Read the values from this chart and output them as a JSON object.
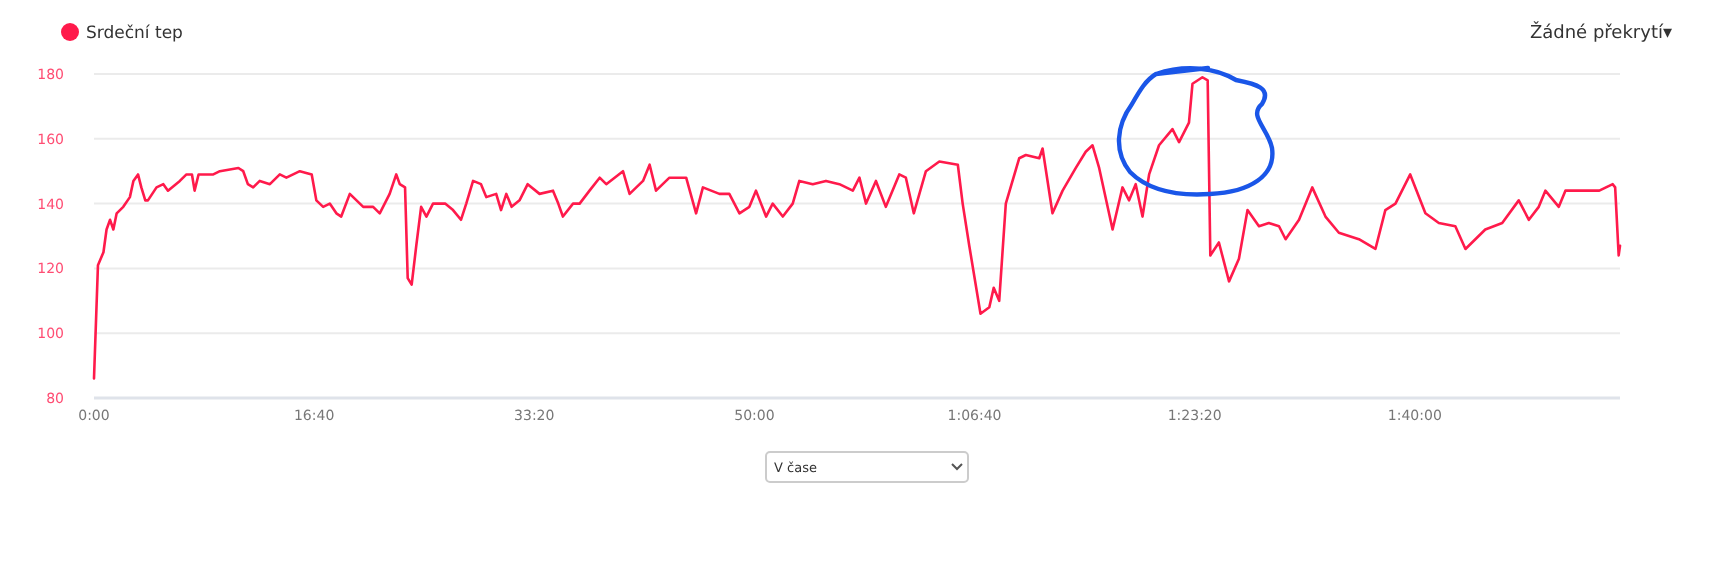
{
  "chart_data": {
    "type": "line",
    "xlim": [
      0,
      6932
    ],
    "ylim": [
      80,
      180
    ],
    "xticks": [
      {
        "value": 0,
        "label": "0:00"
      },
      {
        "value": 1000,
        "label": "16:40"
      },
      {
        "value": 2000,
        "label": "33:20"
      },
      {
        "value": 3000,
        "label": "50:00"
      },
      {
        "value": 4000,
        "label": "1:06:40"
      },
      {
        "value": 5000,
        "label": "1:23:20"
      },
      {
        "value": 6000,
        "label": "1:40:00"
      }
    ],
    "yticks": [
      80,
      100,
      120,
      140,
      160,
      180
    ],
    "grid": "y",
    "legend": "top left",
    "marker": "none",
    "line_style": "solid",
    "annotations": [
      "Žádné překrytí▾",
      "V čase"
    ],
    "series": [
      {
        "name": "Srdeční tep",
        "color": "#ff1a4b",
        "x": [
          0,
          18,
          43,
          57,
          73,
          88,
          103,
          133,
          163,
          179,
          200,
          215,
          233,
          245,
          284,
          315,
          336,
          390,
          420,
          445,
          457,
          475,
          542,
          572,
          656,
          678,
          699,
          723,
          753,
          799,
          844,
          874,
          935,
          989,
          1010,
          1041,
          1071,
          1101,
          1123,
          1162,
          1223,
          1268,
          1298,
          1343,
          1373,
          1389,
          1413,
          1425,
          1443,
          1464,
          1486,
          1510,
          1540,
          1595,
          1631,
          1667,
          1691,
          1722,
          1758,
          1782,
          1827,
          1849,
          1873,
          1897,
          1933,
          1970,
          2024,
          2085,
          2109,
          2130,
          2176,
          2206,
          2251,
          2297,
          2327,
          2403,
          2433,
          2494,
          2524,
          2553,
          2614,
          2690,
          2735,
          2766,
          2841,
          2886,
          2932,
          2977,
          3007,
          3053,
          3083,
          3129,
          3174,
          3204,
          3265,
          3325,
          3386,
          3447,
          3477,
          3507,
          3552,
          3597,
          3658,
          3688,
          3724,
          3779,
          3840,
          3924,
          3946,
          3976,
          4027,
          4067,
          4087,
          4112,
          4142,
          4203,
          4233,
          4294,
          4309,
          4354,
          4400,
          4460,
          4505,
          4536,
          4566,
          4627,
          4672,
          4702,
          4732,
          4763,
          4793,
          4838,
          4899,
          4929,
          4974,
          4990,
          5035,
          5059,
          5071,
          5110,
          5156,
          5201,
          5240,
          5292,
          5337,
          5383,
          5413,
          5474,
          5534,
          5594,
          5655,
          5746,
          5821,
          5866,
          5912,
          5979,
          6048,
          6109,
          6184,
          6230,
          6320,
          6397,
          6472,
          6518,
          6563,
          6593,
          6654,
          6684,
          6838,
          6899,
          6910,
          6926,
          6932
        ],
        "values": [
          86,
          121,
          125,
          132,
          135,
          132,
          137,
          139,
          142,
          147,
          149,
          145,
          141,
          141,
          145,
          146,
          144,
          147,
          149,
          149,
          144,
          149,
          149,
          150,
          151,
          150,
          146,
          145,
          147,
          146,
          149,
          148,
          150,
          149,
          141,
          139,
          140,
          137,
          136,
          143,
          139,
          139,
          137,
          143,
          149,
          146,
          145,
          117,
          115,
          127,
          139,
          136,
          140,
          140,
          138,
          135,
          140,
          147,
          146,
          142,
          143,
          138,
          143,
          139,
          141,
          146,
          143,
          144,
          140,
          136,
          140,
          140,
          144,
          148,
          146,
          150,
          143,
          147,
          152,
          144,
          148,
          148,
          137,
          145,
          143,
          143,
          137,
          139,
          144,
          136,
          140,
          136,
          140,
          147,
          146,
          147,
          146,
          144,
          148,
          140,
          147,
          139,
          149,
          148,
          137,
          150,
          153,
          152,
          140,
          127,
          106,
          108,
          114,
          110,
          140,
          154,
          155,
          154,
          157,
          137,
          144,
          151,
          156,
          158,
          151,
          132,
          145,
          141,
          146,
          136,
          149,
          158,
          163,
          159,
          165,
          177,
          179,
          178,
          124,
          128,
          116,
          123,
          138,
          133,
          134,
          133,
          129,
          135,
          145,
          136,
          131,
          129,
          126,
          138,
          140,
          149,
          137,
          134,
          133,
          126,
          132,
          134,
          141,
          135,
          139,
          144,
          139,
          144,
          144,
          146,
          145,
          124,
          127
        ]
      }
    ]
  }
}
